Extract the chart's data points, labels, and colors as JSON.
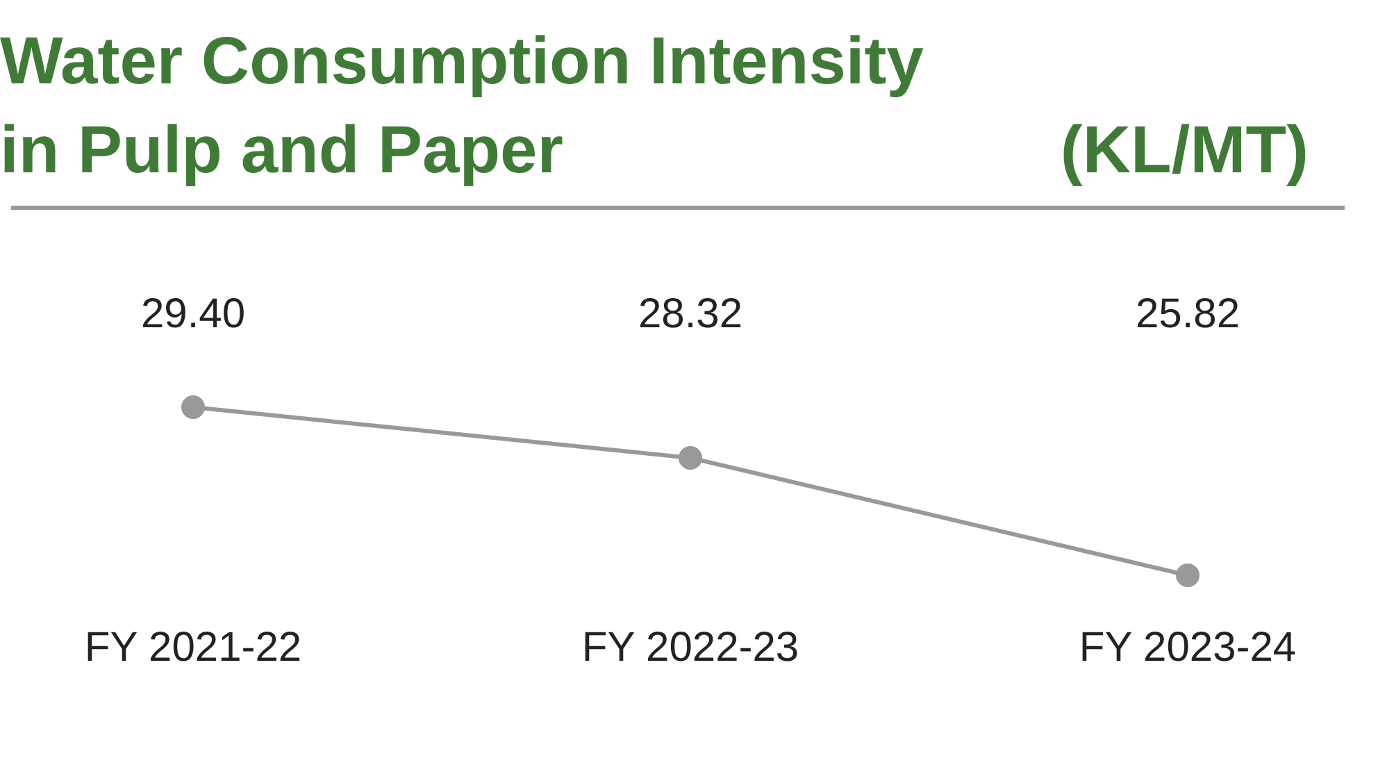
{
  "chart_data": {
    "type": "line",
    "title": "Water Consumption Intensity in Pulp and Paper",
    "subtitle": "(KL/MT)",
    "categories": [
      "FY 2021-22",
      "FY 2022-23",
      "FY 2023-24"
    ],
    "series": [
      {
        "color": "#999999",
        "values": [
          29.4,
          28.32,
          25.82
        ],
        "value_labels": [
          "29.40",
          "28.32",
          "25.82"
        ]
      }
    ],
    "marker": "circle"
  }
}
